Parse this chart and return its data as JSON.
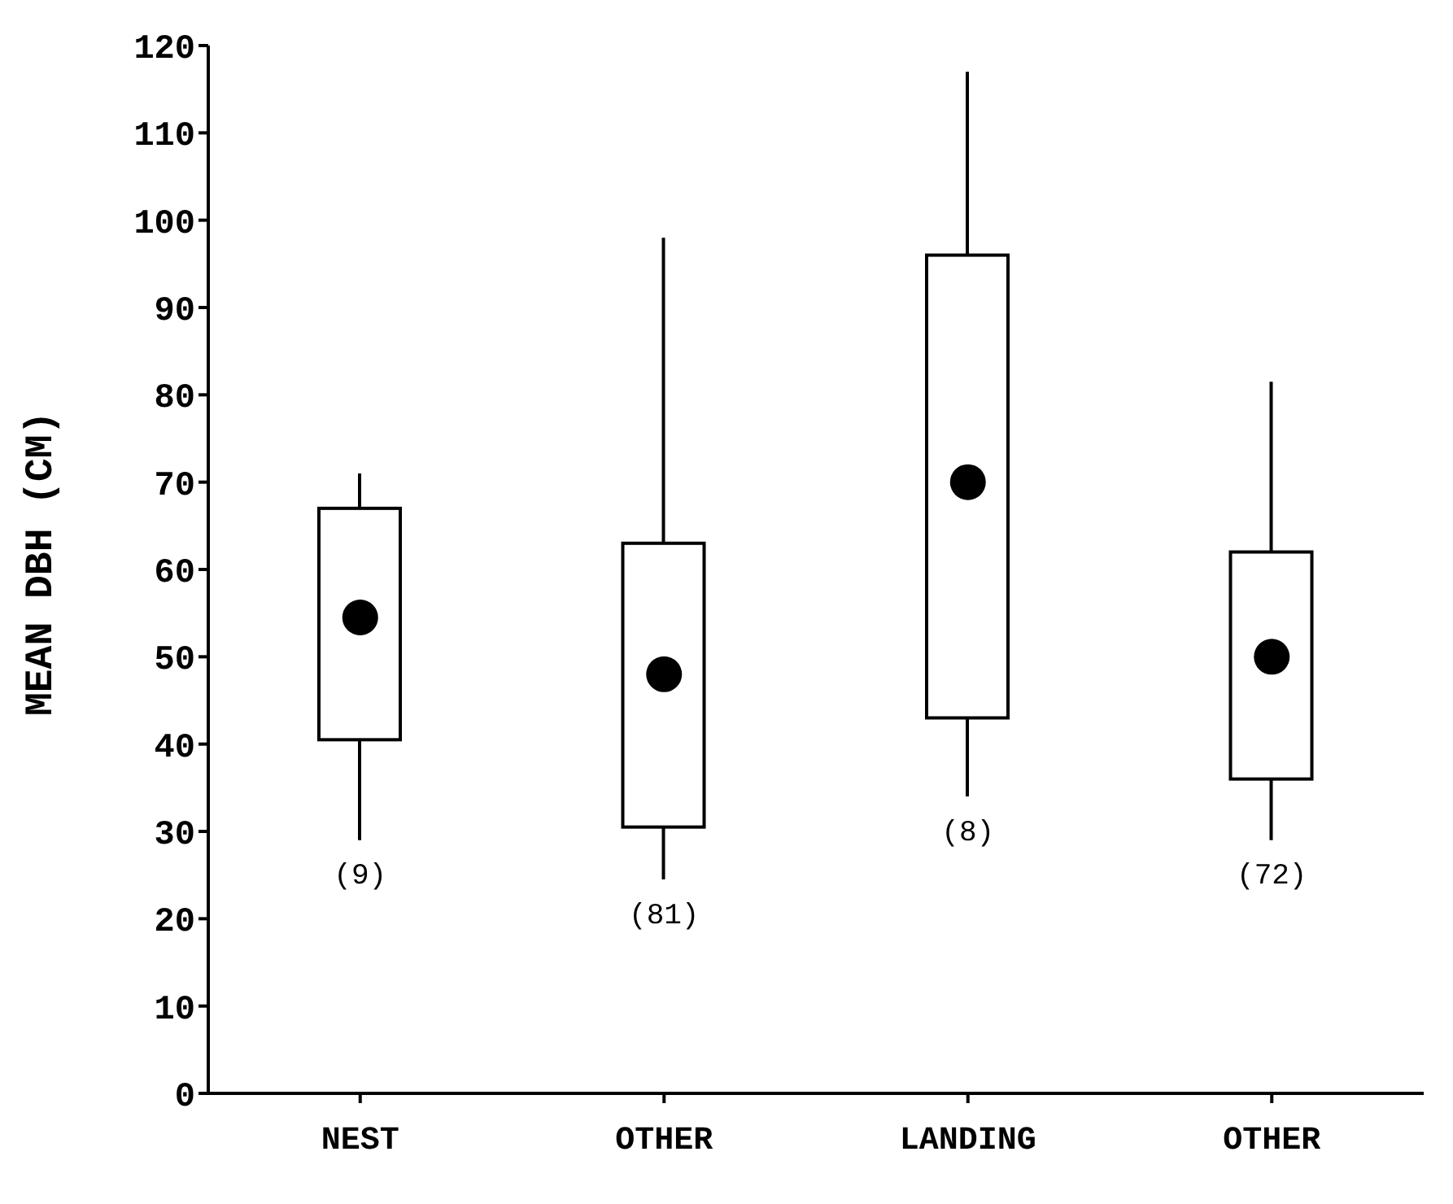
{
  "chart_data": {
    "type": "box",
    "ylabel": "MEAN DBH (CM)",
    "categories": [
      "NEST",
      "OTHER",
      "LANDING",
      "OTHER"
    ],
    "boxes": [
      {
        "low": 29,
        "q1": 40.5,
        "q3": 67,
        "high": 71,
        "mean": 54.5
      },
      {
        "low": 24.5,
        "q1": 30.5,
        "q3": 63,
        "high": 98,
        "mean": 48
      },
      {
        "low": 34,
        "q1": 43,
        "q3": 96,
        "high": 117,
        "mean": 70
      },
      {
        "low": 29,
        "q1": 36,
        "q3": 62,
        "high": 81.5,
        "mean": 50
      }
    ],
    "color": "#000000",
    "ylim": [
      0,
      120
    ],
    "yticks": [
      0,
      10,
      20,
      30,
      40,
      50,
      60,
      70,
      80,
      90,
      100,
      110,
      120
    ],
    "annotations": [
      "(9)",
      "(81)",
      "(8)",
      "(72)"
    ],
    "grid": false,
    "legend": false
  }
}
